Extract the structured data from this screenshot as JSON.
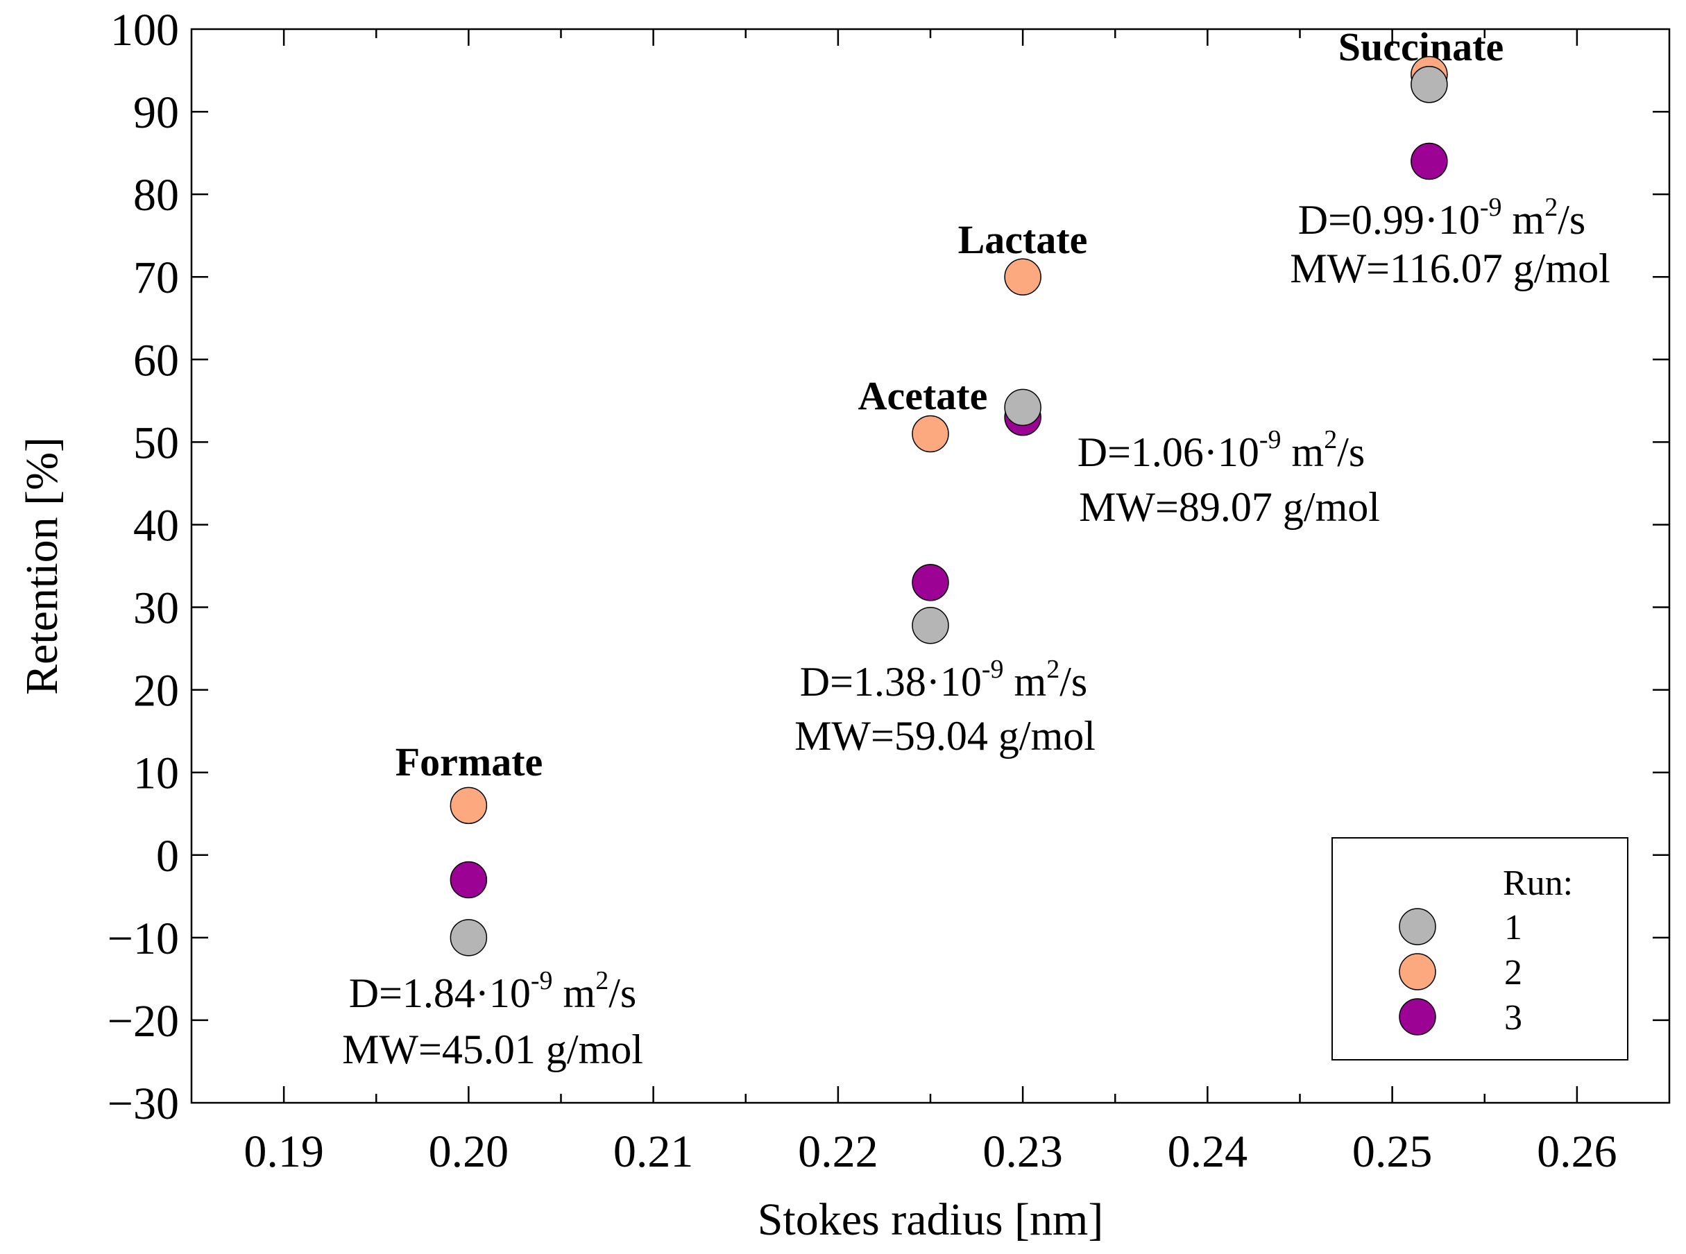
{
  "chart_data": {
    "type": "scatter",
    "xlabel": "Stokes radius [nm]",
    "ylabel": "Retention [%]",
    "xlim": [
      0.185,
      0.265
    ],
    "ylim": [
      -30,
      100
    ],
    "x_ticks": [
      0.19,
      0.2,
      0.21,
      0.22,
      0.23,
      0.24,
      0.25,
      0.26
    ],
    "x_tick_labels": [
      "0.19",
      "0.20",
      "0.21",
      "0.22",
      "0.23",
      "0.24",
      "0.25",
      "0.26"
    ],
    "x_minor_step": 0.005,
    "y_ticks": [
      -30,
      -20,
      -10,
      0,
      10,
      20,
      30,
      40,
      50,
      60,
      70,
      80,
      90,
      100
    ],
    "y_tick_labels": [
      "−30",
      "−20",
      "−10",
      "0",
      "10",
      "20",
      "30",
      "40",
      "50",
      "60",
      "70",
      "80",
      "90",
      "100"
    ],
    "grid": false,
    "legend": {
      "title": "Run:",
      "placement": "bottom-right"
    },
    "series": [
      {
        "name": "1",
        "color": "#b5b5b5",
        "x": [
          0.2,
          0.225,
          0.23,
          0.252
        ],
        "y": [
          -10,
          27.8,
          54.2,
          93.3
        ]
      },
      {
        "name": "2",
        "color": "#fca97f",
        "x": [
          0.2,
          0.225,
          0.23,
          0.252
        ],
        "y": [
          6,
          51,
          70,
          94.5
        ]
      },
      {
        "name": "3",
        "color": "#9c0394",
        "x": [
          0.2,
          0.225,
          0.23,
          0.252
        ],
        "y": [
          -3,
          33,
          53,
          84
        ]
      }
    ],
    "draw_order": [
      {
        "series": 1,
        "point": 3
      },
      {
        "series": 0,
        "point": 3
      },
      {
        "series": 2,
        "point": 3
      },
      {
        "series": 1,
        "point": 2
      },
      {
        "series": 2,
        "point": 2
      },
      {
        "series": 0,
        "point": 2
      },
      {
        "series": 1,
        "point": 1
      },
      {
        "series": 2,
        "point": 1
      },
      {
        "series": 0,
        "point": 1
      },
      {
        "series": 1,
        "point": 0
      },
      {
        "series": 2,
        "point": 0
      },
      {
        "series": 0,
        "point": 0
      }
    ],
    "annotations": [
      {
        "label": "Formate",
        "D_base": "D=1.84·10",
        "D_exp": "-9",
        "D_unit": " m",
        "D_unit_exp": "2",
        "D_tail": "/s",
        "MW": "MW=45.01 g/mol"
      },
      {
        "label": "Acetate",
        "D_base": "D=1.38·10",
        "D_exp": "-9",
        "D_unit": " m",
        "D_unit_exp": "2",
        "D_tail": "/s",
        "MW": "MW=59.04 g/mol"
      },
      {
        "label": "Lactate",
        "D_base": "D=1.06·10",
        "D_exp": "-9",
        "D_unit": " m",
        "D_unit_exp": "2",
        "D_tail": "/s",
        "MW": "MW=89.07 g/mol"
      },
      {
        "label": "Succinate",
        "D_base": "D=0.99·10",
        "D_exp": "-9",
        "D_unit": " m",
        "D_unit_exp": "2",
        "D_tail": "/s",
        "MW": "MW=116.07 g/mol"
      }
    ]
  }
}
